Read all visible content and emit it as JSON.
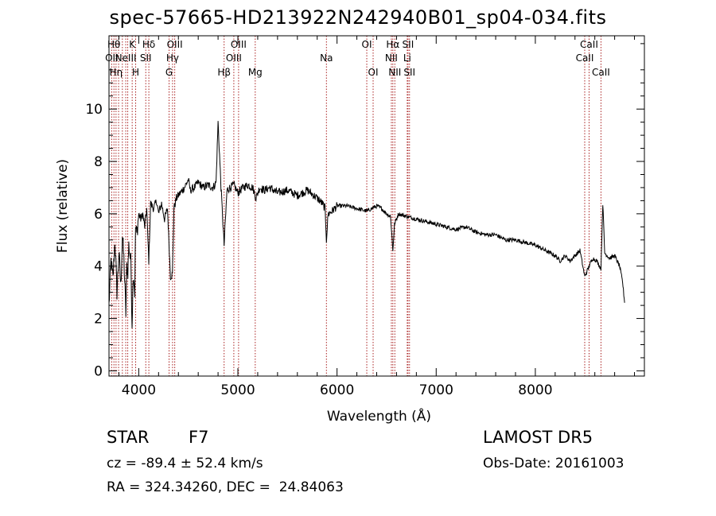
{
  "title": "spec-57665-HD213922N242940B01_sp04-034.fits",
  "info": {
    "class": "STAR",
    "subclass": "F7",
    "survey": "LAMOST DR5",
    "cz": "cz = -89.4 ± 52.4 km/s",
    "obs_date": "Obs-Date: 20161003",
    "radec": "RA = 324.34260, DEC =  24.84063"
  },
  "chart_data": {
    "type": "line",
    "title": "spec-57665-HD213922N242940B01_sp04-034.fits",
    "xlabel": "Wavelength (Å)",
    "ylabel": "Flux (relative)",
    "xlim": [
      3700,
      9100
    ],
    "ylim": [
      -0.2,
      12.8
    ],
    "xticks": [
      4000,
      5000,
      6000,
      7000,
      8000
    ],
    "yticks": [
      0,
      2,
      4,
      6,
      8,
      10
    ],
    "line_color": "#000000",
    "marker_color": "#aa2222",
    "series": [
      {
        "x": [
          3700,
          3720,
          3740,
          3760,
          3780,
          3800,
          3820,
          3835,
          3850,
          3870,
          3880,
          3890,
          3900,
          3920,
          3933,
          3945,
          3960,
          3968,
          3980,
          4000,
          4020,
          4040,
          4060,
          4080,
          4101,
          4120,
          4150,
          4180,
          4200,
          4230,
          4260,
          4290,
          4320,
          4340,
          4355,
          4380,
          4420,
          4460,
          4500,
          4520,
          4560,
          4600,
          4650,
          4700,
          4750,
          4780,
          4800,
          4830,
          4861,
          4890,
          4920,
          4960,
          5000,
          5050,
          5100,
          5150,
          5183,
          5220,
          5270,
          5320,
          5400,
          5500,
          5600,
          5700,
          5800,
          5850,
          5880,
          5893,
          5910,
          5950,
          6000,
          6100,
          6200,
          6300,
          6400,
          6450,
          6500,
          6540,
          6563,
          6580,
          6620,
          6700,
          6800,
          6900,
          7000,
          7100,
          7200,
          7300,
          7400,
          7500,
          7600,
          7700,
          7800,
          7900,
          8000,
          8100,
          8200,
          8250,
          8300,
          8350,
          8400,
          8450,
          8498,
          8542,
          8580,
          8620,
          8662,
          8680,
          8700,
          8750,
          8800,
          8850,
          8880,
          8900
        ],
        "y": [
          2.5,
          4.2,
          3.5,
          5.0,
          3.0,
          4.5,
          3.2,
          5.2,
          4.3,
          2.2,
          4.0,
          3.8,
          4.8,
          4.2,
          1.8,
          3.8,
          3.0,
          5.5,
          5.2,
          6.0,
          5.8,
          6.0,
          5.5,
          6.2,
          4.2,
          6.4,
          6.2,
          6.5,
          6.0,
          6.4,
          5.8,
          6.2,
          3.6,
          3.7,
          6.2,
          6.6,
          6.8,
          7.0,
          7.3,
          6.9,
          7.0,
          7.2,
          7.0,
          7.1,
          7.0,
          7.2,
          9.5,
          7.0,
          4.8,
          6.9,
          7.0,
          7.1,
          6.8,
          7.0,
          7.1,
          7.0,
          6.6,
          7.0,
          6.9,
          7.0,
          6.8,
          6.9,
          6.7,
          6.9,
          6.6,
          6.4,
          6.2,
          5.0,
          6.0,
          6.1,
          6.3,
          6.3,
          6.2,
          6.1,
          6.3,
          6.2,
          6.0,
          5.9,
          4.6,
          5.6,
          6.0,
          5.9,
          5.8,
          5.7,
          5.6,
          5.5,
          5.4,
          5.5,
          5.3,
          5.2,
          5.2,
          5.0,
          5.0,
          4.9,
          4.8,
          4.6,
          4.4,
          4.2,
          4.4,
          4.2,
          4.4,
          4.6,
          3.6,
          4.0,
          4.3,
          4.2,
          3.9,
          6.4,
          4.5,
          4.3,
          4.4,
          4.0,
          3.4,
          2.6
        ]
      }
    ],
    "line_markers": [
      {
        "wl": 3727,
        "row": 1,
        "label": "OII"
      },
      {
        "wl": 3750,
        "row": 0,
        "label": "Hθ"
      },
      {
        "wl": 3771,
        "row": 2,
        "label": "Hη"
      },
      {
        "wl": 3797,
        "row": 0,
        "label": ""
      },
      {
        "wl": 3835,
        "row": 2,
        "label": ""
      },
      {
        "wl": 3869,
        "row": 1,
        "label": "NeIII"
      },
      {
        "wl": 3889,
        "row": 0,
        "label": ""
      },
      {
        "wl": 3934,
        "row": 0,
        "label": "K"
      },
      {
        "wl": 3969,
        "row": 2,
        "label": "H"
      },
      {
        "wl": 4071,
        "row": 1,
        "label": "SII"
      },
      {
        "wl": 4102,
        "row": 0,
        "label": "Hδ"
      },
      {
        "wl": 4306,
        "row": 2,
        "label": "G"
      },
      {
        "wl": 4341,
        "row": 1,
        "label": "Hγ"
      },
      {
        "wl": 4363,
        "row": 0,
        "label": "OIII"
      },
      {
        "wl": 4861,
        "row": 2,
        "label": "Hβ"
      },
      {
        "wl": 4959,
        "row": 1,
        "label": "OIII"
      },
      {
        "wl": 5007,
        "row": 0,
        "label": "OIII"
      },
      {
        "wl": 5175,
        "row": 2,
        "label": "Mg"
      },
      {
        "wl": 5893,
        "row": 1,
        "label": "Na"
      },
      {
        "wl": 6300,
        "row": 0,
        "label": "OI"
      },
      {
        "wl": 6364,
        "row": 2,
        "label": "OI"
      },
      {
        "wl": 6548,
        "row": 1,
        "label": "NII"
      },
      {
        "wl": 6563,
        "row": 0,
        "label": "Hα"
      },
      {
        "wl": 6583,
        "row": 2,
        "label": "NII"
      },
      {
        "wl": 6708,
        "row": 1,
        "label": "Li"
      },
      {
        "wl": 6716,
        "row": 0,
        "label": "SII"
      },
      {
        "wl": 6731,
        "row": 2,
        "label": "SII"
      },
      {
        "wl": 8498,
        "row": 1,
        "label": "CaII"
      },
      {
        "wl": 8542,
        "row": 0,
        "label": "CaII"
      },
      {
        "wl": 8662,
        "row": 2,
        "label": "CaII"
      }
    ]
  }
}
